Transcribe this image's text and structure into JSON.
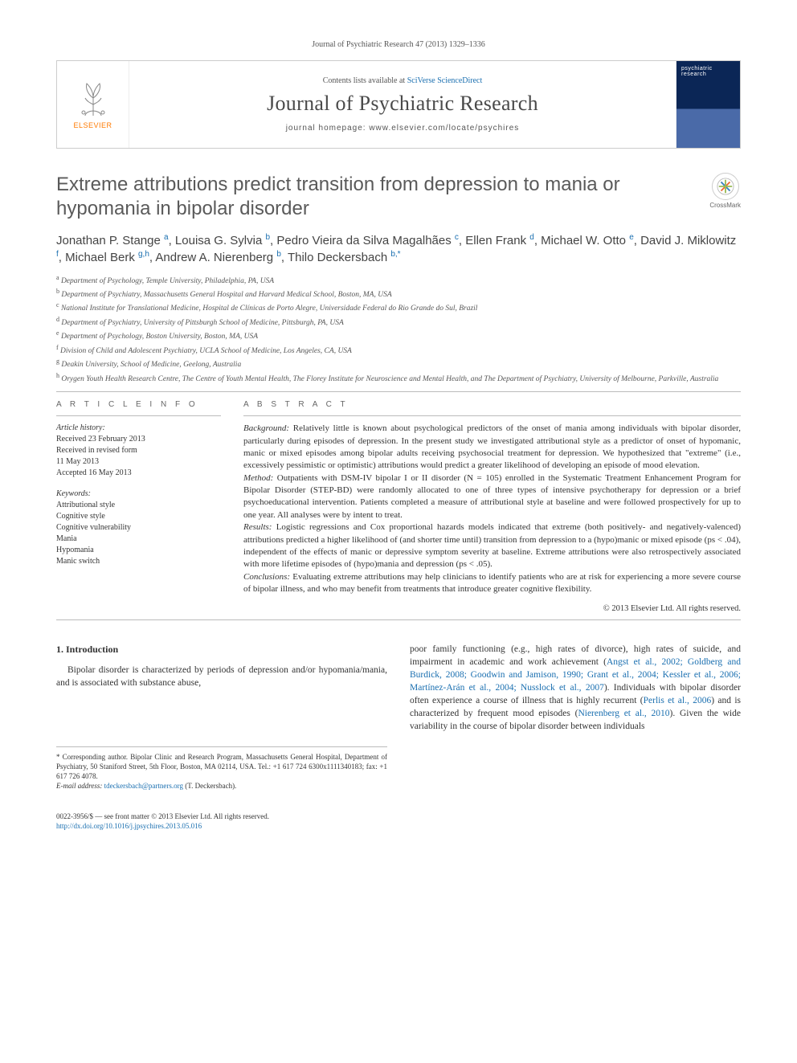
{
  "citation": "Journal of Psychiatric Research 47 (2013) 1329–1336",
  "banner": {
    "publisher": "ELSEVIER",
    "contents_prefix": "Contents lists available at ",
    "contents_link": "SciVerse ScienceDirect",
    "journal_name": "Journal of Psychiatric Research",
    "homepage_label": "journal homepage: ",
    "homepage_url": "www.elsevier.com/locate/psychires",
    "cover_label": "psychiatric research"
  },
  "crossmark_label": "CrossMark",
  "title": "Extreme attributions predict transition from depression to mania or hypomania in bipolar disorder",
  "authors_html": "Jonathan P. Stange <sup>a</sup>, Louisa G. Sylvia <sup>b</sup>, Pedro Vieira da Silva Magalhães <sup>c</sup>, Ellen Frank <sup>d</sup>, Michael W. Otto <sup>e</sup>, David J. Miklowitz <sup>f</sup>, Michael Berk <sup>g,h</sup>, Andrew A. Nierenberg <sup>b</sup>, Thilo Deckersbach <sup>b,*</sup>",
  "affiliations": [
    {
      "k": "a",
      "t": "Department of Psychology, Temple University, Philadelphia, PA, USA"
    },
    {
      "k": "b",
      "t": "Department of Psychiatry, Massachusetts General Hospital and Harvard Medical School, Boston, MA, USA"
    },
    {
      "k": "c",
      "t": "National Institute for Translational Medicine, Hospital de Clínicas de Porto Alegre, Universidade Federal do Rio Grande do Sul, Brazil"
    },
    {
      "k": "d",
      "t": "Department of Psychiatry, University of Pittsburgh School of Medicine, Pittsburgh, PA, USA"
    },
    {
      "k": "e",
      "t": "Department of Psychology, Boston University, Boston, MA, USA"
    },
    {
      "k": "f",
      "t": "Division of Child and Adolescent Psychiatry, UCLA School of Medicine, Los Angeles, CA, USA"
    },
    {
      "k": "g",
      "t": "Deakin University, School of Medicine, Geelong, Australia"
    },
    {
      "k": "h",
      "t": "Orygen Youth Health Research Centre, The Centre of Youth Mental Health, The Florey Institute for Neuroscience and Mental Health, and The Department of Psychiatry, University of Melbourne, Parkville, Australia"
    }
  ],
  "info": {
    "heading": "A R T I C L E   I N F O",
    "history_label": "Article history:",
    "history": [
      "Received 23 February 2013",
      "Received in revised form",
      "11 May 2013",
      "Accepted 16 May 2013"
    ],
    "keywords_label": "Keywords:",
    "keywords": [
      "Attributional style",
      "Cognitive style",
      "Cognitive vulnerability",
      "Mania",
      "Hypomania",
      "Manic switch"
    ]
  },
  "abstract": {
    "heading": "A B S T R A C T",
    "background_label": "Background:",
    "background": " Relatively little is known about psychological predictors of the onset of mania among individuals with bipolar disorder, particularly during episodes of depression. In the present study we investigated attributional style as a predictor of onset of hypomanic, manic or mixed episodes among bipolar adults receiving psychosocial treatment for depression. We hypothesized that \"extreme\" (i.e., excessively pessimistic or optimistic) attributions would predict a greater likelihood of developing an episode of mood elevation.",
    "method_label": "Method:",
    "method": " Outpatients with DSM-IV bipolar I or II disorder (N = 105) enrolled in the Systematic Treatment Enhancement Program for Bipolar Disorder (STEP-BD) were randomly allocated to one of three types of intensive psychotherapy for depression or a brief psychoeducational intervention. Patients completed a measure of attributional style at baseline and were followed prospectively for up to one year. All analyses were by intent to treat.",
    "results_label": "Results:",
    "results": " Logistic regressions and Cox proportional hazards models indicated that extreme (both positively- and negatively-valenced) attributions predicted a higher likelihood of (and shorter time until) transition from depression to a (hypo)manic or mixed episode (ps < .04), independent of the effects of manic or depressive symptom severity at baseline. Extreme attributions were also retrospectively associated with more lifetime episodes of (hypo)mania and depression (ps < .05).",
    "conclusions_label": "Conclusions:",
    "conclusions": " Evaluating extreme attributions may help clinicians to identify patients who are at risk for experiencing a more severe course of bipolar illness, and who may benefit from treatments that introduce greater cognitive flexibility.",
    "copyright": "© 2013 Elsevier Ltd. All rights reserved."
  },
  "intro": {
    "num": "1.",
    "heading": "Introduction",
    "col1": "Bipolar disorder is characterized by periods of depression and/or hypomania/mania, and is associated with substance abuse,",
    "col2_a": "poor family functioning (e.g., high rates of divorce), high rates of suicide, and impairment in academic and work achievement (",
    "col2_cites": "Angst et al., 2002; Goldberg and Burdick, 2008; Goodwin and Jamison, 1990; Grant et al., 2004; Kessler et al., 2006; Martínez-Arán et al., 2004; Nusslock et al., 2007",
    "col2_b": "). Individuals with bipolar disorder often experience a course of illness that is highly recurrent (",
    "col2_cite2": "Perlis et al., 2006",
    "col2_c": ") and is characterized by frequent mood episodes (",
    "col2_cite3": "Nierenberg et al., 2010",
    "col2_d": "). Given the wide variability in the course of bipolar disorder between individuals"
  },
  "corr": {
    "star": "*",
    "text": " Corresponding author. Bipolar Clinic and Research Program, Massachusetts General Hospital, Department of Psychiatry, 50 Staniford Street, 5th Floor, Boston, MA 02114, USA. Tel.: +1 617 724 6300x1111340183; fax: +1 617 726 4078.",
    "email_label": "E-mail address:",
    "email": "tdeckersbach@partners.org",
    "email_person": "(T. Deckersbach)."
  },
  "footer": {
    "line1": "0022-3956/$ — see front matter © 2013 Elsevier Ltd. All rights reserved.",
    "doi": "http://dx.doi.org/10.1016/j.jpsychires.2013.05.016"
  },
  "colors": {
    "link": "#1a6fb0",
    "orange": "#ff7a00",
    "text": "#333333",
    "muted": "#555555",
    "rule": "#bbbbbb"
  }
}
